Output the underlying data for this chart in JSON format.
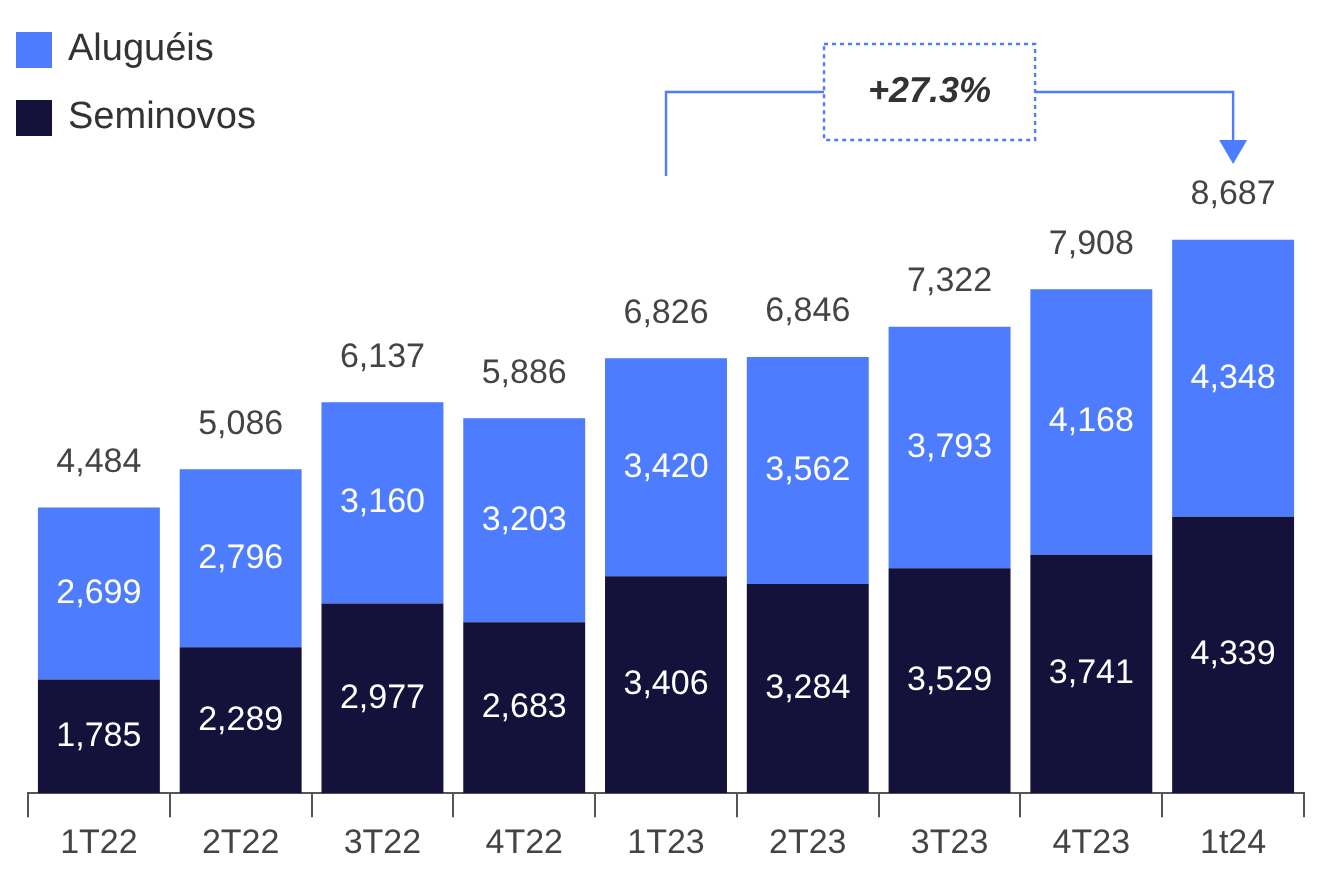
{
  "chart_data": {
    "type": "bar",
    "stacked": true,
    "legend": "top left",
    "categories": [
      "1T22",
      "2T22",
      "3T22",
      "4T22",
      "1T23",
      "2T23",
      "3T23",
      "4T23",
      "1t24"
    ],
    "series": [
      {
        "name": "Seminovos",
        "color": "#14113a",
        "values": [
          1785,
          2289,
          2977,
          2683,
          3406,
          3284,
          3529,
          3741,
          4339
        ],
        "value_labels": [
          "1,785",
          "2,289",
          "2,977",
          "2,683",
          "3,406",
          "3,284",
          "3,529",
          "3,741",
          "4,339"
        ]
      },
      {
        "name": "Aluguéis",
        "color": "#4d7cfe",
        "values": [
          2699,
          2796,
          3160,
          3203,
          3420,
          3562,
          3793,
          4168,
          4348
        ],
        "value_labels": [
          "2,699",
          "2,796",
          "3,160",
          "3,203",
          "3,420",
          "3,562",
          "3,793",
          "4,168",
          "4,348"
        ]
      }
    ],
    "totals": [
      "4,484",
      "5,086",
      "6,137",
      "5,886",
      "6,826",
      "6,846",
      "7,322",
      "7,908",
      "8,687"
    ],
    "annotations": [
      "+27.3%"
    ]
  }
}
